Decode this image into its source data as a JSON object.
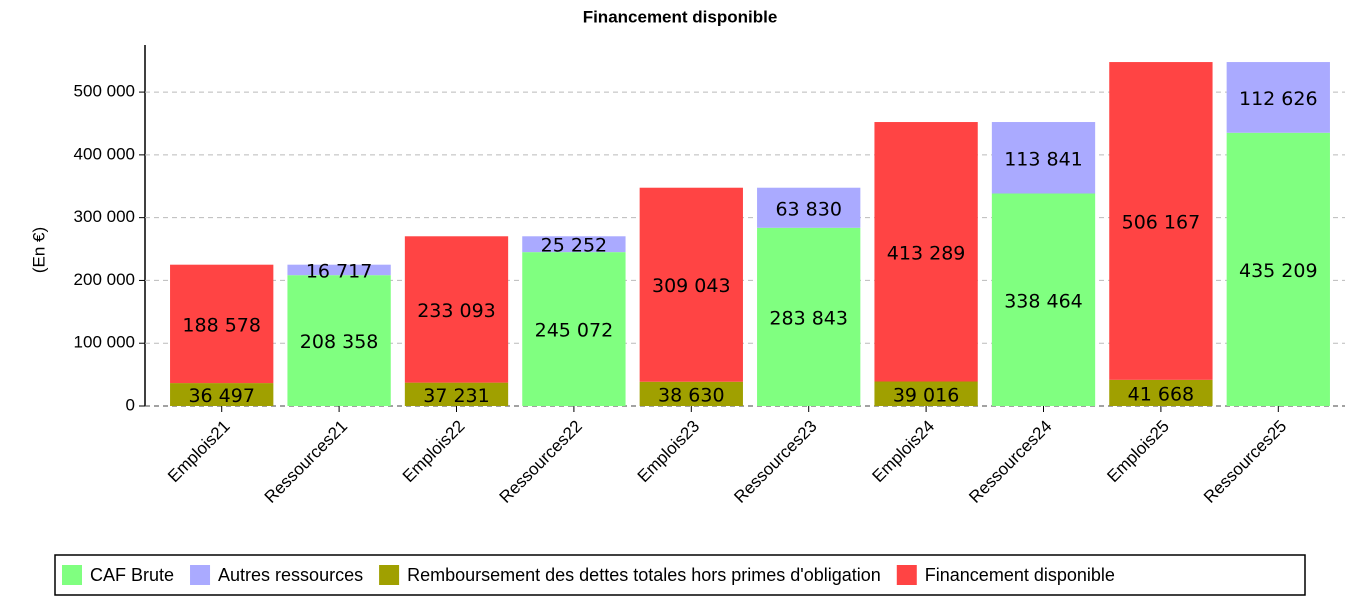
{
  "chart_data": {
    "type": "stacked_bar",
    "title": "Financement disponible",
    "y_label": "(En €)",
    "categories": [
      "Emplois21",
      "Ressources21",
      "Emplois22",
      "Ressources22",
      "Emplois23",
      "Ressources23",
      "Emplois24",
      "Ressources24",
      "Emplois25",
      "Ressources25"
    ],
    "series": [
      {
        "name": "CAF Brute",
        "color": "#80ff80",
        "values": [
          null,
          208358,
          null,
          245072,
          null,
          283843,
          null,
          338464,
          null,
          435209
        ],
        "value_labels": [
          null,
          "208 358",
          null,
          "245 072",
          null,
          "283 843",
          null,
          "338 464",
          null,
          "435 209"
        ]
      },
      {
        "name": "Autres ressources",
        "color": "#aaaaff",
        "values": [
          null,
          16717,
          null,
          25252,
          null,
          63830,
          null,
          113841,
          null,
          112626
        ],
        "value_labels": [
          null,
          "16 717",
          null,
          "25 252",
          null,
          "63 830",
          null,
          "113 841",
          null,
          "112 626"
        ]
      },
      {
        "name": "Remboursement des dettes totales hors primes d'obligation",
        "color": "#a0a000",
        "values": [
          36497,
          null,
          37231,
          null,
          38630,
          null,
          39016,
          null,
          41668,
          null
        ],
        "value_labels": [
          "36 497",
          null,
          "37 231",
          null,
          "38 630",
          null,
          "39 016",
          null,
          "41 668",
          null
        ]
      },
      {
        "name": "Financement disponible",
        "color": "#ff4444",
        "values": [
          188578,
          null,
          233093,
          null,
          309043,
          null,
          413289,
          null,
          506167,
          null
        ],
        "value_labels": [
          "188 578",
          null,
          "233 093",
          null,
          "309 043",
          null,
          "413 289",
          null,
          "506 167",
          null
        ]
      }
    ],
    "ylim": [
      0,
      575000
    ],
    "yticks": [
      0,
      {
        "value": 100000,
        "label": "100 000"
      },
      {
        "value": 200000,
        "label": "200 000"
      },
      {
        "value": 300000,
        "label": "300 000"
      },
      {
        "value": 400000,
        "label": "400 000"
      },
      {
        "value": 500000,
        "label": "500 000"
      }
    ],
    "grid": true,
    "legend": "bottom"
  }
}
